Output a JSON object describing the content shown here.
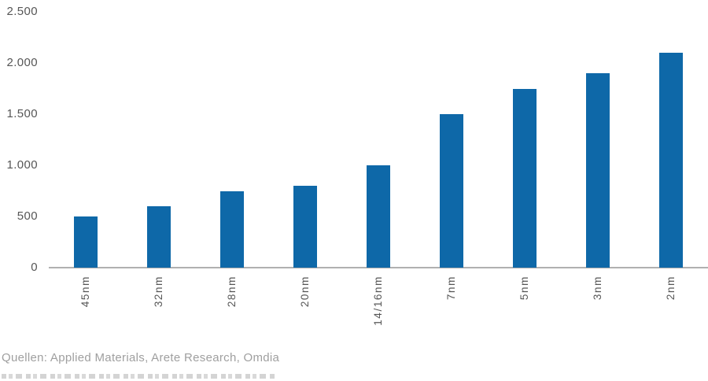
{
  "chart_data": {
    "type": "bar",
    "title": "",
    "xlabel": "",
    "ylabel": "",
    "categories": [
      "45nm",
      "32nm",
      "28nm",
      "20nm",
      "14/16nm",
      "7nm",
      "5nm",
      "3nm",
      "2nm"
    ],
    "values": [
      500,
      600,
      750,
      800,
      1000,
      1500,
      1750,
      1900,
      2100
    ],
    "ylim": [
      0,
      2500
    ],
    "y_ticks": [
      {
        "label": "2.500",
        "value": 2500
      },
      {
        "label": "2.000",
        "value": 2000
      },
      {
        "label": "1.500",
        "value": 1500
      },
      {
        "label": "1.000",
        "value": 1000
      },
      {
        "label": "500",
        "value": 500
      },
      {
        "label": "0",
        "value": 0
      }
    ],
    "number_format": "de-DE (dot thousands separator)",
    "grid": false,
    "legend": false,
    "bar_color": "#0e68a8",
    "axis_line_color": "#b0b0b0",
    "tick_label_color": "#565656",
    "x_label_rotation_deg": -90
  },
  "footer": {
    "source_label": "Quellen: Applied Materials, Arete Research, Omdia",
    "source_color": "#9f9f9f",
    "truncated_second_line_visible": true
  }
}
